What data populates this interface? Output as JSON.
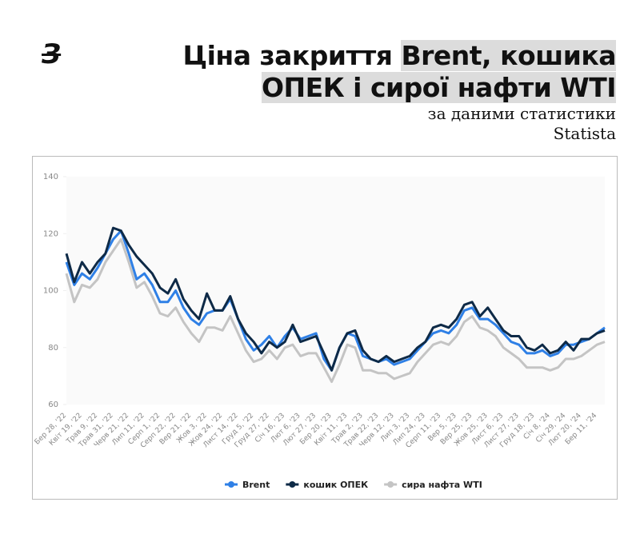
{
  "logo": "З",
  "title": {
    "plain": "Ціна закриття",
    "highlight1": "Brent, кошика",
    "highlight2": "ОПЕК і сирої нафти WTI"
  },
  "subtitle": "за даними статистики Statista",
  "chart_data": {
    "type": "line",
    "categories": [
      "Бер 28, '22",
      null,
      "Квіт 19, '22",
      null,
      "Трав 9, '22",
      null,
      "Трав 31, '22",
      null,
      "Черв 21, '22",
      null,
      "Лип 11, '22",
      null,
      "Серп 1, '22",
      null,
      "Серп 22, '22",
      null,
      "Вер 21, '22",
      null,
      "Жов 3, '22",
      null,
      "Жов 24, '22",
      null,
      "Лист 14, '22",
      null,
      "Груд 5, '22",
      null,
      "Груд 27, '22",
      null,
      "Січ 16, '23",
      null,
      "Лют 6, '23",
      null,
      "Лют 27, '23",
      null,
      "Бер 20, '23",
      null,
      "Квіт 11, '23",
      null,
      "Трав 2, '23",
      null,
      "Трав 22, '23",
      null,
      "Черв 12, '23",
      null,
      "Лип 3, '23",
      null,
      "Лип 24, '23",
      null,
      "Серп 11, '23",
      null,
      "Вер 5, '23",
      null,
      "Вер 25, '23",
      null,
      "Жов 25, '23",
      null,
      "Лист 6, '23",
      null,
      "Лист 27, '23",
      null,
      "Груд 18, '23",
      null,
      "Січ 8, '24",
      null,
      "Січ 29, '24",
      null,
      "Лют 20, '24",
      null,
      "Бер 11, '24",
      null
    ],
    "series": [
      {
        "name": "сира нафта WTI",
        "color": "#c4c4c4",
        "values": [
          106,
          96,
          102,
          101,
          104,
          110,
          114,
          118,
          110,
          101,
          103,
          98,
          92,
          91,
          94,
          89,
          85,
          82,
          87,
          87,
          86,
          91,
          85,
          79,
          75,
          76,
          79,
          76,
          80,
          81,
          77,
          78,
          78,
          73,
          68,
          74,
          81,
          80,
          72,
          72,
          71,
          71,
          69,
          70,
          71,
          75,
          78,
          81,
          82,
          81,
          84,
          89,
          91,
          87,
          86,
          84,
          80,
          78,
          76,
          73,
          73,
          73,
          72,
          73,
          76,
          76,
          77,
          79,
          81,
          82
        ]
      },
      {
        "name": "Brent",
        "color": "#2f80e6",
        "values": [
          110,
          102,
          106,
          104,
          108,
          113,
          118,
          121,
          113,
          104,
          106,
          102,
          96,
          96,
          100,
          94,
          90,
          88,
          92,
          93,
          93,
          97,
          90,
          83,
          79,
          81,
          84,
          80,
          84,
          87,
          83,
          84,
          85,
          76,
          72,
          80,
          85,
          84,
          77,
          76,
          75,
          76,
          74,
          75,
          76,
          79,
          82,
          85,
          86,
          85,
          88,
          93,
          94,
          90,
          90,
          88,
          85,
          82,
          81,
          78,
          78,
          79,
          77,
          78,
          81,
          81,
          82,
          83,
          85,
          87
        ]
      },
      {
        "name": "кошик ОПЕК",
        "color": "#0e2a47",
        "values": [
          113,
          103,
          110,
          106,
          110,
          113,
          122,
          121,
          116,
          112,
          109,
          106,
          101,
          99,
          104,
          97,
          93,
          90,
          99,
          93,
          93,
          98,
          90,
          85,
          82,
          78,
          82,
          80,
          82,
          88,
          82,
          83,
          84,
          78,
          72,
          80,
          85,
          86,
          79,
          76,
          75,
          77,
          75,
          76,
          77,
          80,
          82,
          87,
          88,
          87,
          90,
          95,
          96,
          91,
          94,
          90,
          86,
          84,
          84,
          80,
          79,
          81,
          78,
          79,
          82,
          79,
          83,
          83,
          85,
          86
        ]
      }
    ],
    "ylim": [
      60,
      140
    ],
    "yticks": [
      60,
      80,
      100,
      120,
      140
    ],
    "legend": "bottom"
  }
}
